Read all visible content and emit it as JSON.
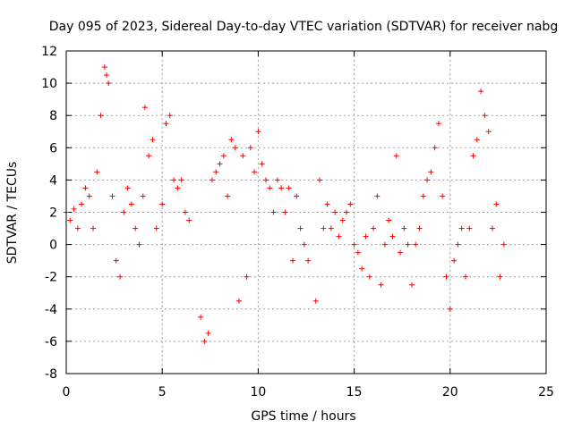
{
  "chart_data": {
    "type": "scatter",
    "title": "Day 095 of 2023, Sidereal Day-to-day VTEC variation (SDTVAR) for receiver nabg",
    "xlabel": "GPS time / hours",
    "ylabel": "SDTVAR / TECUs",
    "xlim": [
      0,
      25
    ],
    "ylim": [
      -8,
      12
    ],
    "xticks": [
      0,
      5,
      10,
      15,
      20,
      25
    ],
    "yticks": [
      -8,
      -6,
      -4,
      -2,
      0,
      2,
      4,
      6,
      8,
      10,
      12
    ],
    "grid": true,
    "marker": "+",
    "color": "#ff0000",
    "series": [
      {
        "name": "SDTVAR",
        "x": [
          0.0,
          0.2,
          0.4,
          0.6,
          0.8,
          1.0,
          1.2,
          1.4,
          1.6,
          1.8,
          2.0,
          2.1,
          2.2,
          2.4,
          2.6,
          2.8,
          3.0,
          3.2,
          3.4,
          3.6,
          3.8,
          4.0,
          4.1,
          4.3,
          4.5,
          4.7,
          5.0,
          5.2,
          5.4,
          5.6,
          5.8,
          6.0,
          6.2,
          6.4,
          7.0,
          7.2,
          7.4,
          7.6,
          7.8,
          8.0,
          8.2,
          8.4,
          8.6,
          8.8,
          9.0,
          9.2,
          9.4,
          9.6,
          9.8,
          10.0,
          10.2,
          10.4,
          10.6,
          10.8,
          11.0,
          11.2,
          11.4,
          11.6,
          11.8,
          12.0,
          12.2,
          12.4,
          12.6,
          13.0,
          13.2,
          13.4,
          13.6,
          13.8,
          14.0,
          14.2,
          14.4,
          14.6,
          14.8,
          15.0,
          15.2,
          15.4,
          15.6,
          15.8,
          16.0,
          16.2,
          16.4,
          16.6,
          16.8,
          17.0,
          17.2,
          17.4,
          17.6,
          17.8,
          18.0,
          18.2,
          18.4,
          18.6,
          18.8,
          19.0,
          19.2,
          19.4,
          19.6,
          19.8,
          20.0,
          20.2,
          20.4,
          20.6,
          20.8,
          21.0,
          21.2,
          21.4,
          21.6,
          21.8,
          22.0,
          22.2,
          22.4,
          22.6,
          22.8
        ],
        "y": [
          2.0,
          1.5,
          2.2,
          1.0,
          2.5,
          3.5,
          3.0,
          1.0,
          4.5,
          8.0,
          11.0,
          10.5,
          10.0,
          3.0,
          -1.0,
          -2.0,
          2.0,
          3.5,
          2.5,
          1.0,
          0.0,
          3.0,
          8.5,
          5.5,
          6.5,
          1.0,
          2.5,
          7.5,
          8.0,
          4.0,
          3.5,
          4.0,
          2.0,
          1.5,
          -4.5,
          -6.0,
          -5.5,
          4.0,
          4.5,
          5.0,
          5.5,
          3.0,
          6.5,
          6.0,
          -3.5,
          5.5,
          -2.0,
          6.0,
          4.5,
          7.0,
          5.0,
          4.0,
          3.5,
          2.0,
          4.0,
          3.5,
          2.0,
          3.5,
          -1.0,
          3.0,
          1.0,
          0.0,
          -1.0,
          -3.5,
          4.0,
          1.0,
          2.5,
          1.0,
          2.0,
          0.5,
          1.5,
          2.0,
          2.5,
          0.0,
          -0.5,
          -1.5,
          0.5,
          -2.0,
          1.0,
          3.0,
          -2.5,
          0.0,
          1.5,
          0.5,
          5.5,
          -0.5,
          1.0,
          0.0,
          -2.5,
          0.0,
          1.0,
          3.0,
          4.0,
          4.5,
          6.0,
          7.5,
          3.0,
          -2.0,
          -4.0,
          -1.0,
          0.0,
          1.0,
          -2.0,
          1.0,
          5.5,
          6.5,
          9.5,
          8.0,
          7.0,
          1.0,
          2.5,
          -2.0,
          0.0
        ]
      }
    ]
  }
}
